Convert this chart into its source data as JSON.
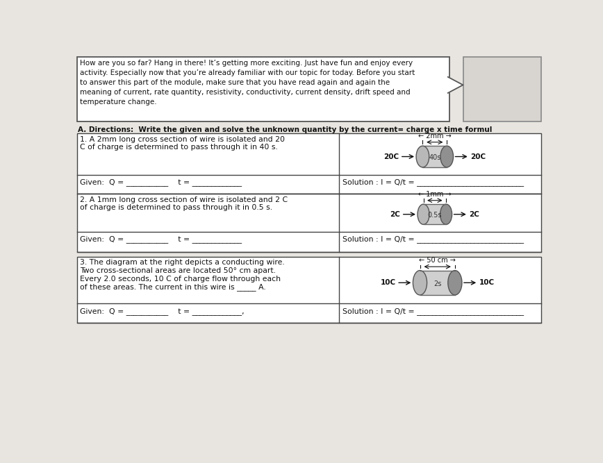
{
  "bg_color": "#e8e5e0",
  "title_box_text": "How are you so far? Hang in there! It’s getting more exciting. Just have fun and enjoy every\nactivity. Especially now that you’re already familiar with our topic for today. Before you start\nto answer this part of the module, make sure that you have read again and again the\nmeaning of current, rate quantity, resistivity, conductivity, current density, drift speed and\ntemperature change.",
  "directions_text": "A. Directions:  Write the given and solve the unknown quantity by the current= charge x time formul",
  "problem1_text": "1. A 2mm long cross section of wire is isolated and 20\nC of charge is determined to pass through it in 40 s.",
  "problem1_label": "← 2mm →",
  "problem1_charge_L": "20C",
  "problem1_charge_R": "20C",
  "problem1_time": "40s",
  "problem1_given": "Given:  Q = ___________    t = _____________",
  "problem1_solution": "Solution : I = Q/t = ____________________________",
  "problem2_text": "2. A 1mm long cross section of wire is isolated and 2 C\nof charge is determined to pass through it in 0.5 s.",
  "problem2_label": "← 1mm →",
  "problem2_charge_L": "2C",
  "problem2_charge_R": "2C",
  "problem2_time": "0.5s",
  "problem2_given": "Given:  Q = ___________    t = _____________",
  "problem2_solution": "Solution : I = Q/t = ____________________________",
  "problem3_text": "3. The diagram at the right depicts a conducting wire.\nTwo cross-sectional areas are located 50° cm apart.\nEvery 2.0 seconds, 10 C of charge flow through each\nof these areas. The current in this wire is _____ A.",
  "problem3_label": "← 50 cm →",
  "problem3_charge_L": "10C",
  "problem3_charge_R": "10C",
  "problem3_time": "2s",
  "problem3_given": "Given:  Q = ___________    t = _____________,",
  "problem3_solution": "Solution : I = Q/t = ____________________________",
  "table_border_color": "#444444",
  "text_color": "#111111",
  "wire_face_color": "#b8b8b8",
  "wire_side_color": "#d0d0d0",
  "wire_dark_color": "#909090"
}
